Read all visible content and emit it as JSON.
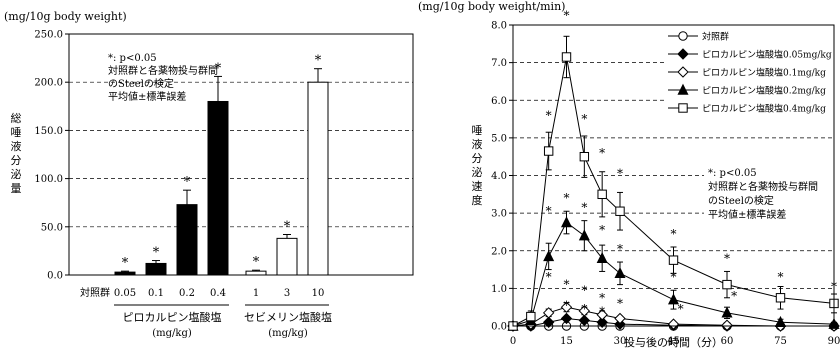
{
  "chart_data": [
    {
      "type": "bar",
      "unit_label": "(mg/10g body weight)",
      "ylabel": "総唾液分泌量",
      "ylim": [
        0,
        250
      ],
      "yticks": [
        0,
        50,
        100,
        150,
        200,
        250
      ],
      "ytick_labels": [
        "0.0",
        "50.0",
        "100.0",
        "150.0",
        "200.0",
        "250.0"
      ],
      "grid": "horizontal dashed",
      "categories": [
        "対照群",
        "0.05",
        "0.1",
        "0.2",
        "0.4",
        "1",
        "3",
        "10"
      ],
      "values": [
        0,
        3,
        12,
        73,
        180,
        4,
        38,
        200
      ],
      "errors": [
        0,
        1,
        3,
        15,
        26,
        1,
        4,
        14
      ],
      "fills": [
        "none",
        "#000000",
        "#000000",
        "#000000",
        "#000000",
        "#ffffff",
        "#ffffff",
        "#ffffff"
      ],
      "significant": [
        false,
        true,
        true,
        true,
        true,
        true,
        true,
        true
      ],
      "sig_marker": "*",
      "groups": [
        {
          "name": "ピロカルピン塩酸塩",
          "unit": "(mg/kg)"
        },
        {
          "name": "セビメリン塩酸塩",
          "unit": "(mg/kg)"
        }
      ],
      "note": [
        "*: p<0.05",
        "対照群と各薬物投与群間",
        "のSteelの検定",
        "平均値±標準誤差"
      ]
    },
    {
      "type": "line",
      "unit_label": "(mg/10g body weight/min)",
      "ylabel": "唾液分泌速度",
      "xlabel": "投与後の時間（分）",
      "xlim": [
        0,
        90
      ],
      "ylim": [
        0,
        8
      ],
      "xticks": [
        0,
        15,
        30,
        45,
        60,
        75,
        90
      ],
      "yticks": [
        0,
        1,
        2,
        3,
        4,
        5,
        6,
        7,
        8
      ],
      "ytick_labels": [
        "0.0",
        "1.0",
        "2.0",
        "3.0",
        "4.0",
        "5.0",
        "6.0",
        "7.0",
        "8.0"
      ],
      "grid": "horizontal dashed",
      "legend_position": "top-right",
      "x": [
        0,
        5,
        10,
        15,
        20,
        25,
        30,
        45,
        60,
        75,
        90
      ],
      "series": [
        {
          "name": "対照群",
          "marker": "circle-open",
          "values": [
            0,
            0,
            0,
            0,
            0,
            0,
            0,
            0,
            0,
            0,
            0
          ],
          "errors": [
            0,
            0,
            0,
            0,
            0,
            0,
            0,
            0,
            0,
            0,
            0
          ]
        },
        {
          "name": "ピロカルピン塩酸塩0.05mg/kg",
          "marker": "diamond-filled",
          "values": [
            0,
            0,
            0.1,
            0.2,
            0.15,
            0.1,
            0.05,
            0.02,
            0,
            0,
            0
          ],
          "errors": [
            0,
            0,
            0.05,
            0.05,
            0.05,
            0.05,
            0.03,
            0,
            0,
            0,
            0
          ]
        },
        {
          "name": "ピロカルピン塩酸塩0.1mg/kg",
          "marker": "diamond-open",
          "values": [
            0,
            0.05,
            0.35,
            0.5,
            0.4,
            0.3,
            0.2,
            0.05,
            0.02,
            0,
            0
          ],
          "errors": [
            0,
            0.03,
            0.1,
            0.12,
            0.1,
            0.08,
            0.06,
            0.03,
            0,
            0,
            0
          ]
        },
        {
          "name": "ピロカルピン塩酸塩0.2mg/kg",
          "marker": "triangle-filled",
          "values": [
            0,
            0.15,
            1.85,
            2.75,
            2.4,
            1.8,
            1.4,
            0.7,
            0.35,
            0.1,
            0.05
          ],
          "errors": [
            0,
            0.1,
            0.35,
            0.3,
            0.4,
            0.35,
            0.3,
            0.25,
            0.15,
            0.08,
            0.05
          ]
        },
        {
          "name": "ピロカルピン塩酸塩0.4mg/kg",
          "marker": "square-open",
          "values": [
            0,
            0.25,
            4.65,
            7.15,
            4.5,
            3.5,
            3.05,
            1.75,
            1.1,
            0.75,
            0.6
          ],
          "errors": [
            0,
            0.15,
            0.5,
            0.55,
            0.55,
            0.6,
            0.5,
            0.35,
            0.35,
            0.3,
            0.25
          ]
        }
      ],
      "significance_markers": [
        {
          "x": 10,
          "y": 5.6
        },
        {
          "x": 15,
          "y": 8.25
        },
        {
          "x": 20,
          "y": 5.5
        },
        {
          "x": 25,
          "y": 4.6
        },
        {
          "x": 30,
          "y": 4.05
        },
        {
          "x": 45,
          "y": 2.45
        },
        {
          "x": 60,
          "y": 1.8
        },
        {
          "x": 75,
          "y": 1.3
        },
        {
          "x": 90,
          "y": 1.05
        },
        {
          "x": 10,
          "y": 3.05
        },
        {
          "x": 15,
          "y": 3.4
        },
        {
          "x": 20,
          "y": 3.15
        },
        {
          "x": 25,
          "y": 2.55
        },
        {
          "x": 30,
          "y": 2.05
        },
        {
          "x": 45,
          "y": 1.3
        },
        {
          "x": 62,
          "y": 0.8
        },
        {
          "x": 10,
          "y": 1.3
        },
        {
          "x": 15,
          "y": 1.1
        },
        {
          "x": 20,
          "y": 0.95
        },
        {
          "x": 25,
          "y": 0.75
        },
        {
          "x": 30,
          "y": 0.6
        },
        {
          "x": 47,
          "y": 0.45
        },
        {
          "x": 15,
          "y": 0.55
        },
        {
          "x": 20,
          "y": 0.45
        },
        {
          "x": 25,
          "y": 0.38
        }
      ],
      "sig_marker": "*",
      "note": [
        "*: p<0.05",
        "対照群と各薬物投与群間",
        "のSteelの検定",
        "平均値±標準誤差"
      ]
    }
  ]
}
